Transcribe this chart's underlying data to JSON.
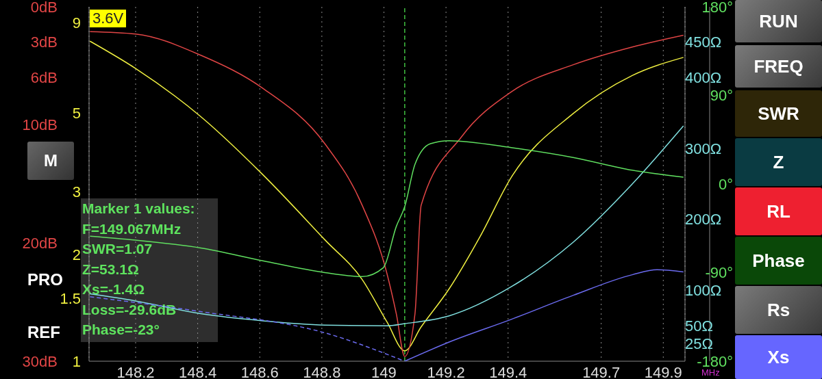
{
  "chart_data": [
    {
      "type": "line",
      "xlabel": "MHz",
      "xlim": [
        148.05,
        149.97
      ],
      "xticks": [
        148.2,
        148.4,
        148.6,
        148.8,
        149,
        149.2,
        149.4,
        149.7,
        149.9
      ],
      "log": "y",
      "ylim": [
        1,
        10
      ],
      "yticks": [
        1,
        1.5,
        2,
        3,
        5,
        9
      ],
      "y2lim": [
        30,
        0
      ],
      "y2ticks": [
        {
          "value": 0,
          "label": "0dB"
        },
        {
          "value": 3,
          "label": "3dB"
        },
        {
          "value": 6,
          "label": "6dB"
        },
        {
          "value": 10,
          "label": "10dB"
        },
        {
          "value": 20,
          "label": "20dB"
        },
        {
          "value": 30,
          "label": "30dB"
        }
      ],
      "grid": "x",
      "marker": "none",
      "ref_lines": [
        {
          "axis": "x",
          "value": 149.067,
          "color": "#40c040",
          "line_style": "dashed"
        }
      ],
      "series": [
        {
          "color": "#f0f040",
          "axis": "y",
          "x": [
            148.053,
            148.2,
            148.41,
            148.61,
            148.81,
            148.93,
            149.01,
            149.067,
            149.12,
            149.21,
            149.31,
            149.41,
            149.61,
            149.8,
            149.965
          ],
          "values": [
            8.0,
            6.7,
            4.9,
            3.36,
            2.2,
            1.7,
            1.29,
            1.07,
            1.25,
            1.6,
            2.25,
            3.3,
            5.0,
            6.4,
            7.2
          ]
        },
        {
          "color": "#e04545",
          "axis": "y2",
          "x": [
            148.053,
            148.2,
            148.41,
            148.61,
            148.81,
            148.93,
            149.01,
            149.04,
            149.067,
            149.1,
            149.12,
            149.25,
            149.41,
            149.61,
            149.8,
            149.965
          ],
          "values": [
            2.1,
            2.3,
            4.1,
            6.9,
            11.6,
            16.8,
            22.6,
            26,
            29.6,
            26,
            16.8,
            11,
            7.2,
            4.9,
            3.4,
            2.4
          ]
        }
      ],
      "annotations": [
        "3.6V",
        "Marker 1 values:",
        "F=149.067MHz",
        "SWR=1.07",
        "Z=53.1Ω",
        "Xs=-1.4Ω",
        "Loss=-29.6dB",
        "Phase=-23°",
        "M",
        "PRO",
        "REF",
        "RUN",
        "FREQ",
        "SWR",
        "Z",
        "RL",
        "Phase",
        "Rs",
        "Xs"
      ]
    },
    {
      "type": "line",
      "xlim": [
        148.05,
        149.97
      ],
      "tick_labels": "y",
      "marker": "none",
      "ylim": [
        0,
        500
      ],
      "yticks": [
        {
          "value": 25,
          "label": "25Ω"
        },
        {
          "value": 50,
          "label": "50Ω"
        },
        {
          "value": 100,
          "label": "100Ω"
        },
        {
          "value": 200,
          "label": "200Ω"
        },
        {
          "value": 300,
          "label": "300Ω"
        },
        {
          "value": 400,
          "label": "400Ω"
        },
        {
          "value": 450,
          "label": "450Ω"
        }
      ],
      "y2lim": [
        -180,
        180
      ],
      "y2ticks": [
        {
          "value": -180,
          "label": "-180°"
        },
        {
          "value": -90,
          "label": "-90°"
        },
        {
          "value": 0,
          "label": "0°"
        },
        {
          "value": 90,
          "label": "90°"
        },
        {
          "value": 180,
          "label": "180°"
        }
      ],
      "series": [
        {
          "color": "#80e0e0",
          "axis": "y",
          "x": [
            148.053,
            148.2,
            148.41,
            148.61,
            148.81,
            149.01,
            149.067,
            149.21,
            149.41,
            149.61,
            149.8,
            149.965
          ],
          "values": [
            95,
            85,
            67,
            57,
            51,
            50,
            53,
            64,
            105,
            168,
            250,
            332
          ]
        },
        {
          "color": "#60e060",
          "axis": "y2",
          "x": [
            148.053,
            148.2,
            148.41,
            148.61,
            148.81,
            148.93,
            148.998,
            149.04,
            149.067,
            149.1,
            149.15,
            149.21,
            149.41,
            149.61,
            149.8,
            149.965
          ],
          "values": [
            -53,
            -57,
            -65,
            -78,
            -90,
            -94,
            -85,
            -43,
            -23,
            20,
            41,
            44,
            37,
            27,
            14,
            7
          ]
        },
        {
          "color": "#6b6bf0",
          "axis": "y",
          "x": [
            149.067,
            149.21,
            149.41,
            149.61,
            149.8,
            149.88,
            149.965
          ],
          "values": [
            0,
            27,
            59,
            93,
            122,
            129,
            126
          ]
        },
        {
          "color": "#6b6bf0",
          "axis": "y",
          "line_style": "dashed",
          "x": [
            148.053,
            148.41,
            148.81,
            149.067
          ],
          "values": [
            91,
            70,
            40,
            0
          ]
        }
      ]
    }
  ]
}
